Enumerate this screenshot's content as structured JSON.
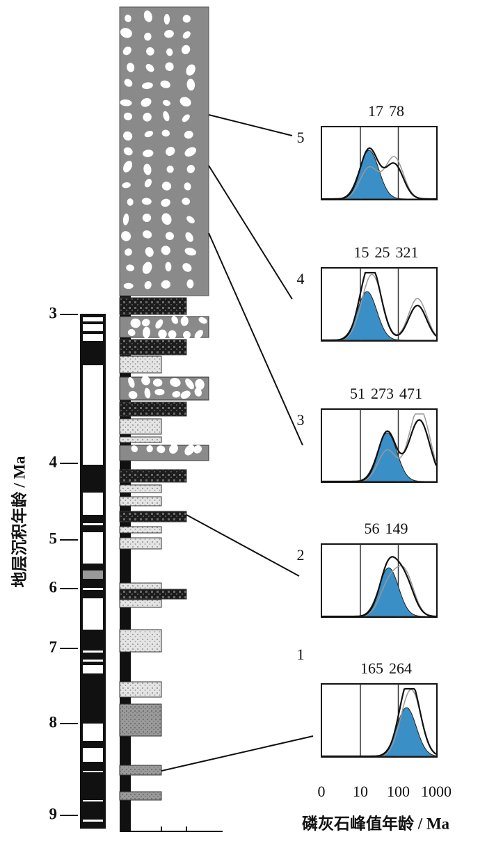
{
  "y_axis": {
    "label": "地层沉积年龄 / Ma",
    "ticks": [
      3,
      4,
      5,
      6,
      7,
      8,
      9
    ]
  },
  "x_axis": {
    "label": "磷灰石峰值年龄 / Ma",
    "ticks": [
      0,
      10,
      100,
      1000
    ],
    "log": true
  },
  "samples": [
    {
      "label": 5,
      "peaks": [
        17,
        78
      ]
    },
    {
      "label": 4,
      "peaks": [
        15,
        25,
        321
      ]
    },
    {
      "label": 3,
      "peaks": [
        51,
        273,
        471
      ]
    },
    {
      "label": 2,
      "peaks": [
        56,
        149
      ]
    },
    {
      "label": 1,
      "peaks": [
        165,
        264
      ]
    }
  ]
}
